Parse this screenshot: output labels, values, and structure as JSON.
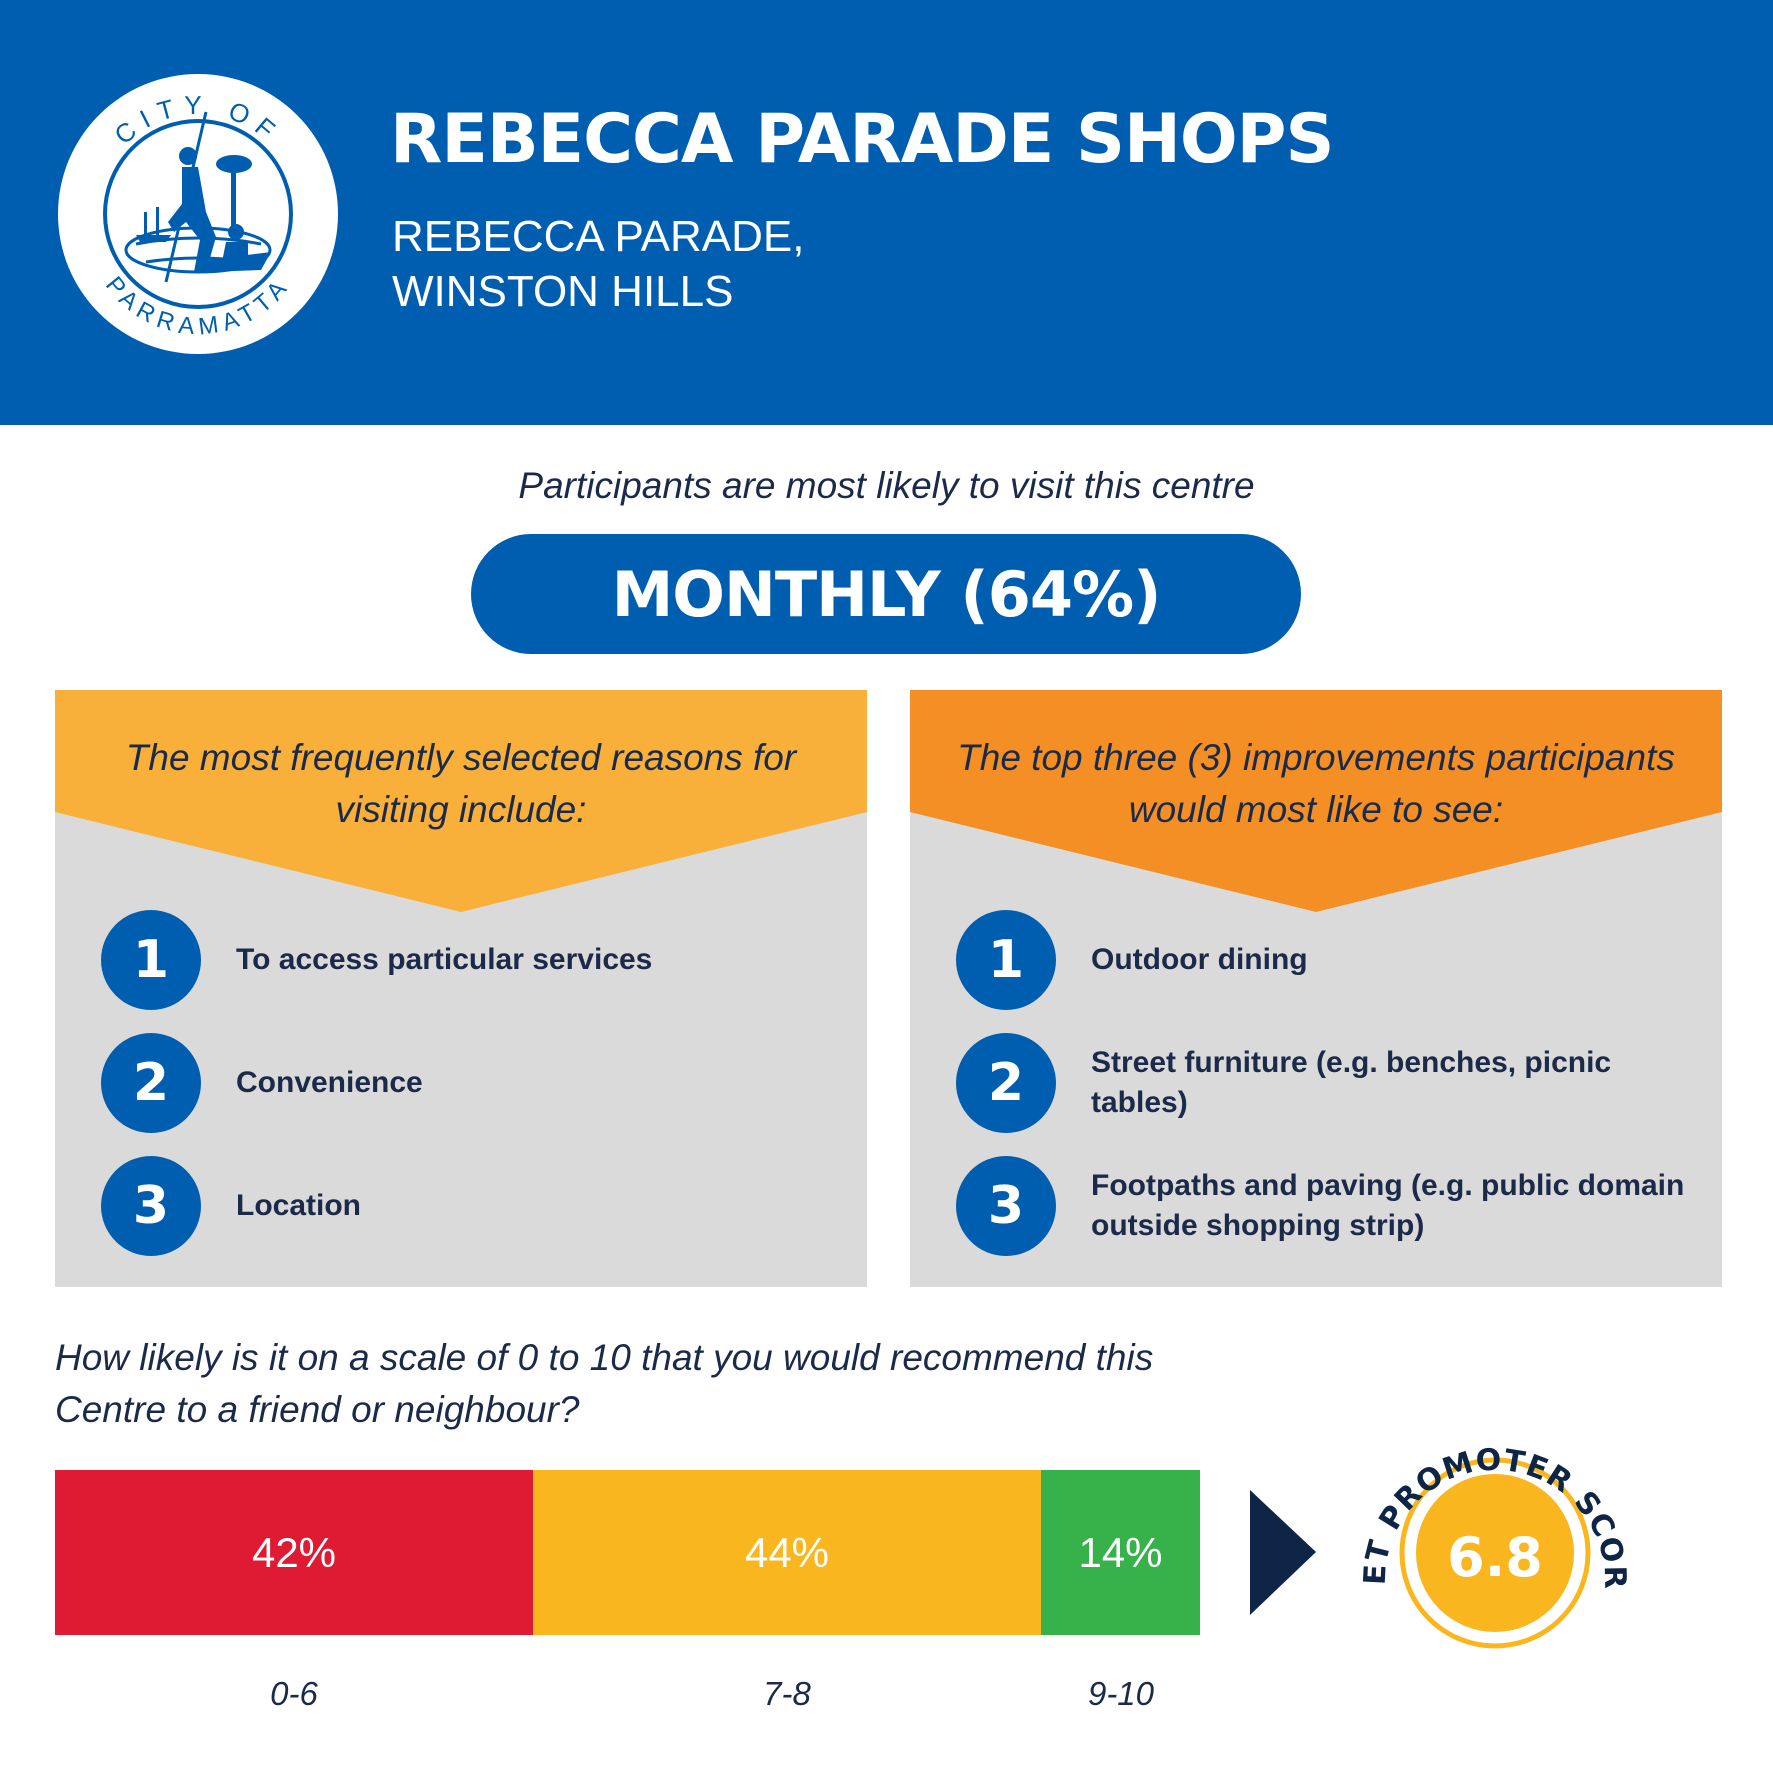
{
  "header": {
    "title": "REBECCA PARADE SHOPS",
    "address_line1": "REBECCA PARADE,",
    "address_line2": "WINSTON HILLS",
    "logo": {
      "top_text": "CITY OF",
      "bottom_text": "PARRAMATTA"
    }
  },
  "visit": {
    "caption": "Participants are most likely to visit this centre",
    "frequency": "MONTHLY (64%)"
  },
  "reasons": {
    "heading": "The most frequently selected reasons for visiting include:",
    "items": [
      {
        "rank": "1",
        "text": "To access particular services"
      },
      {
        "rank": "2",
        "text": "Convenience"
      },
      {
        "rank": "3",
        "text": "Location"
      }
    ]
  },
  "improvements": {
    "heading": "The top three (3) improvements participants would most like to see:",
    "items": [
      {
        "rank": "1",
        "text": "Outdoor dining"
      },
      {
        "rank": "2",
        "text": "Street furniture (e.g. benches, picnic tables)"
      },
      {
        "rank": "3",
        "text": "Footpaths and paving (e.g. public domain outside shopping strip)"
      }
    ]
  },
  "recommend": {
    "question": "How likely is it on a scale of 0 to 10 that you would recommend this Centre to a friend or neighbour?",
    "segments": [
      {
        "label": "42%",
        "range": "0-6",
        "value": 42
      },
      {
        "label": "44%",
        "range": "7-8",
        "value": 44
      },
      {
        "label": "14%",
        "range": "9-10",
        "value": 14
      }
    ],
    "nps_label": "NET PROMOTER SCORE",
    "nps_value": "6.8"
  },
  "colors": {
    "brand_blue": "#005eb0",
    "reasons_banner": "#f8b03a",
    "improvements_banner": "#f38f24",
    "detractor_red": "#df1b33",
    "passive_yellow": "#fab61e",
    "promoter_green": "#37b24a",
    "navy": "#0f2547"
  }
}
